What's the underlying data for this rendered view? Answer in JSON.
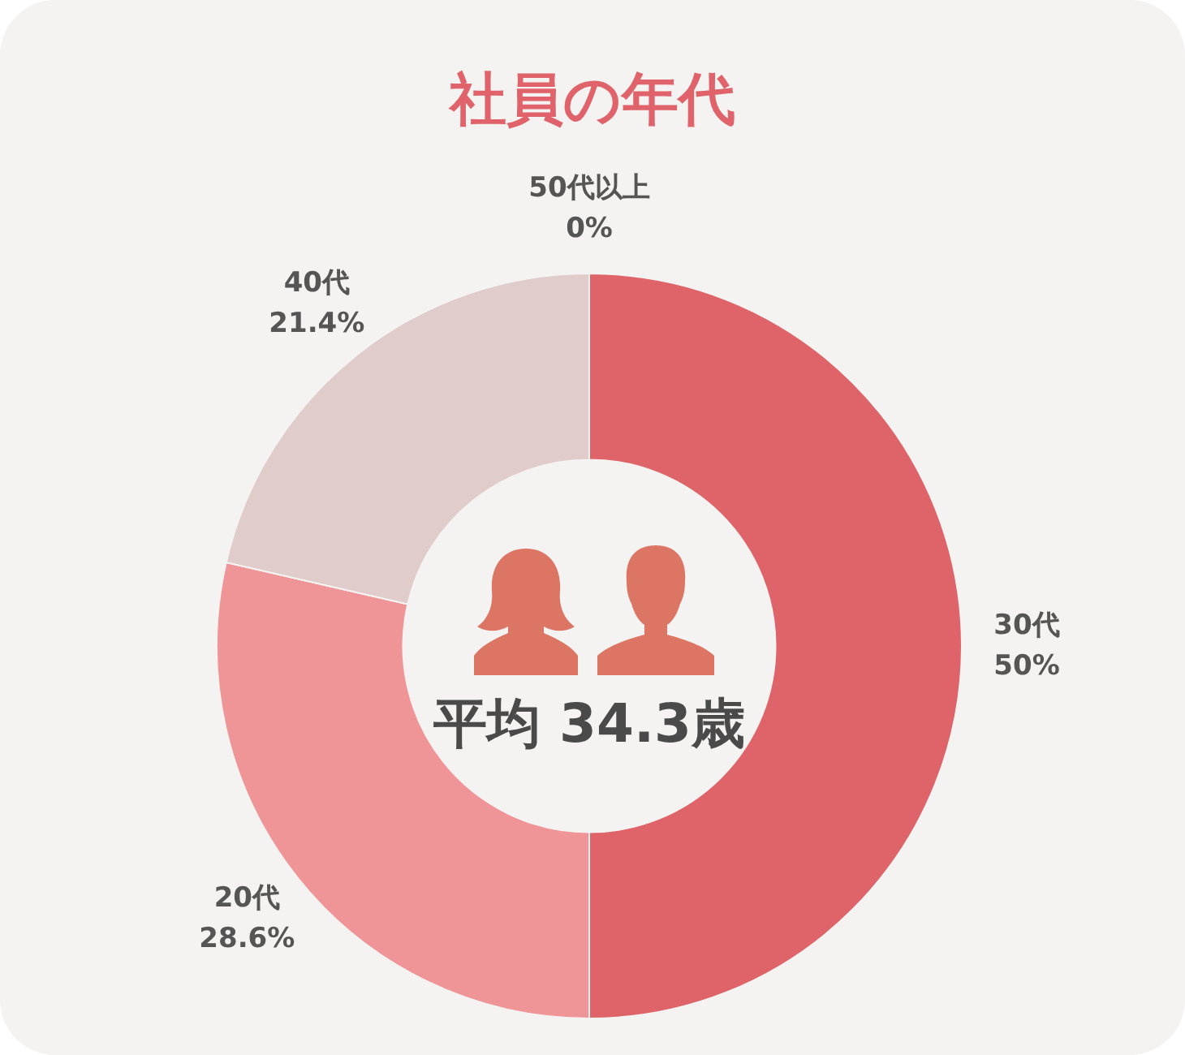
{
  "chart_data": {
    "type": "donut",
    "title": "社員の年代",
    "categories": [
      "30代",
      "20代",
      "40代",
      "50代以上"
    ],
    "values": [
      50,
      28.6,
      21.4,
      0
    ],
    "colors": [
      "#de6469",
      "#f09597",
      "#dfcccb",
      "#c9b4b3"
    ],
    "value_labels": [
      "50%",
      "28.6%",
      "21.4%",
      "0%"
    ],
    "annotations": [
      "平均 34.3歳"
    ]
  }
}
